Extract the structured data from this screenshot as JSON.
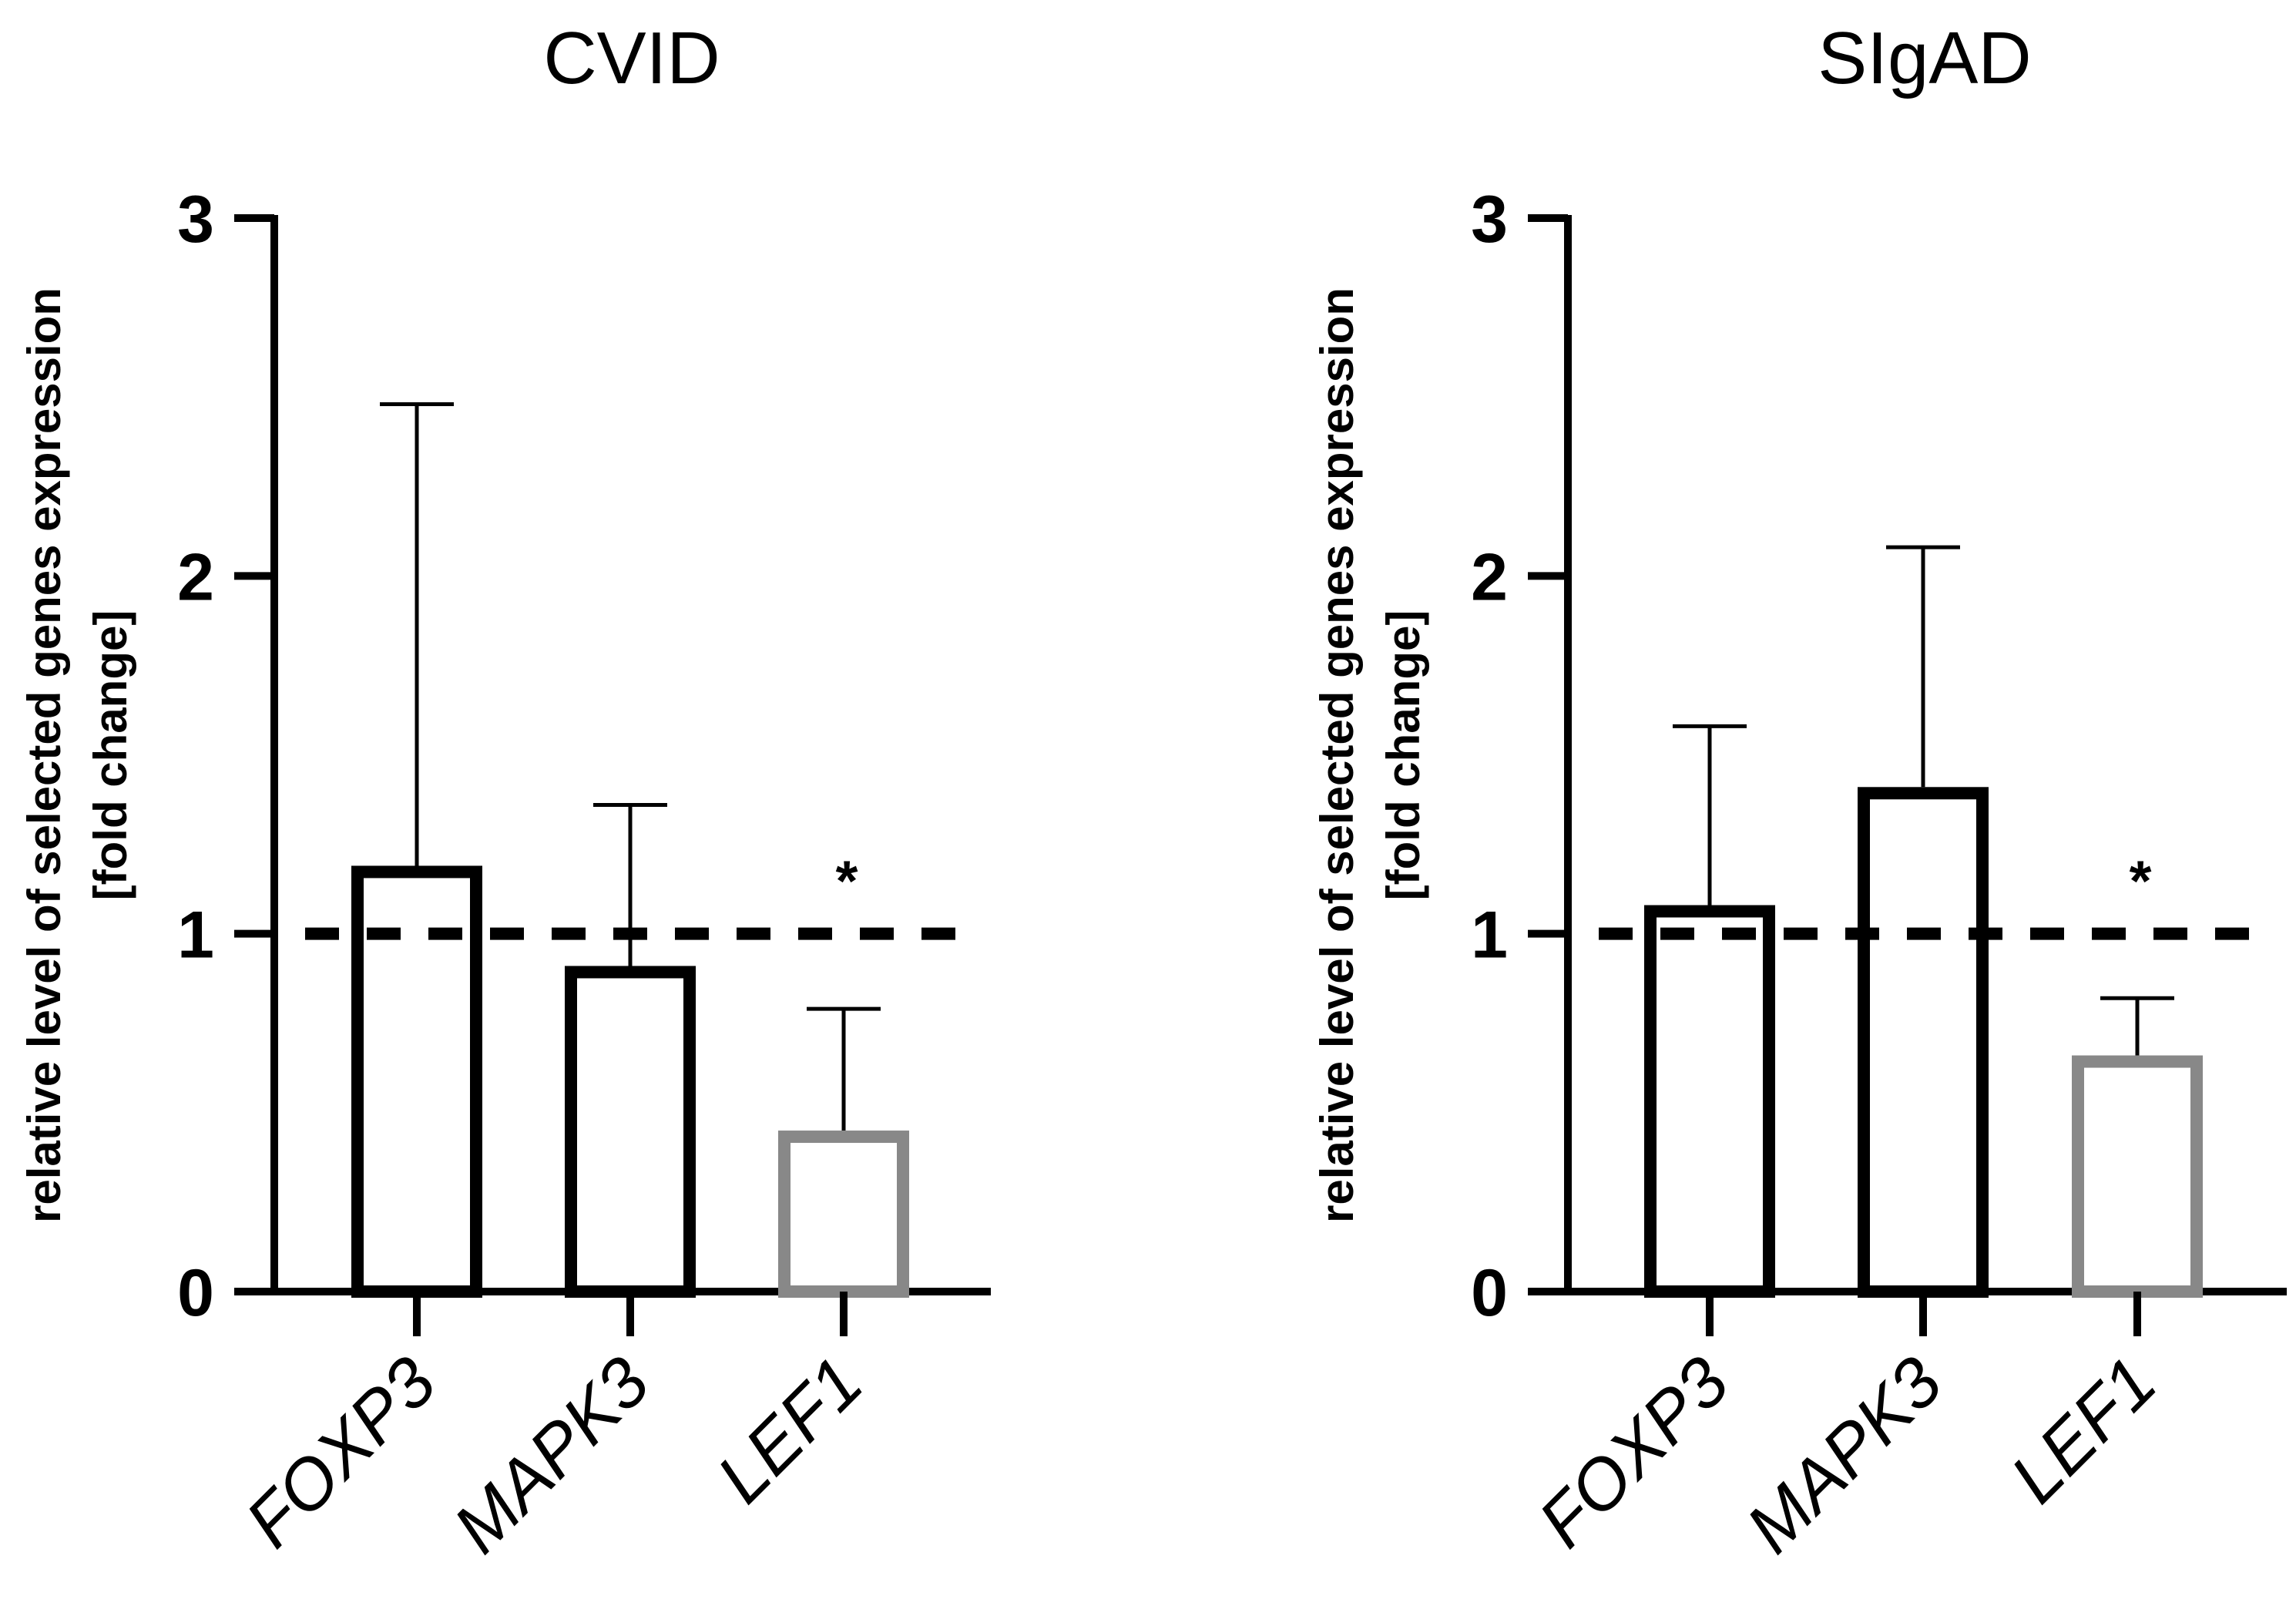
{
  "chart_data": [
    {
      "type": "bar",
      "title": "CVID",
      "ylabel_line1": "relative level of selected genes expression",
      "ylabel_line2": "[fold change]",
      "xlabel": "",
      "categories": [
        "FOXP3",
        "MAPK3",
        "LEF1"
      ],
      "values": [
        1.19,
        0.91,
        0.45
      ],
      "error_upper": [
        2.48,
        1.36,
        0.79
      ],
      "bar_colors": [
        "#000000",
        "#000000",
        "#888888"
      ],
      "significance": [
        "",
        "",
        "*"
      ],
      "reference_line": 1,
      "ylim": [
        0,
        3
      ],
      "yticks": [
        "0",
        "1",
        "2",
        "3"
      ],
      "grid": false
    },
    {
      "type": "bar",
      "title": "SIgAD",
      "ylabel_line1": "relative level of selected genes expression",
      "ylabel_line2": "[fold change]",
      "xlabel": "",
      "categories": [
        "FOXP3",
        "MAPK3",
        "LEF1"
      ],
      "values": [
        1.08,
        1.41,
        0.66
      ],
      "error_upper": [
        1.58,
        2.08,
        0.82
      ],
      "bar_colors": [
        "#000000",
        "#000000",
        "#888888"
      ],
      "significance": [
        "",
        "",
        "*"
      ],
      "reference_line": 1,
      "ylim": [
        0,
        3
      ],
      "yticks": [
        "0",
        "1",
        "2",
        "3"
      ],
      "grid": false
    }
  ]
}
